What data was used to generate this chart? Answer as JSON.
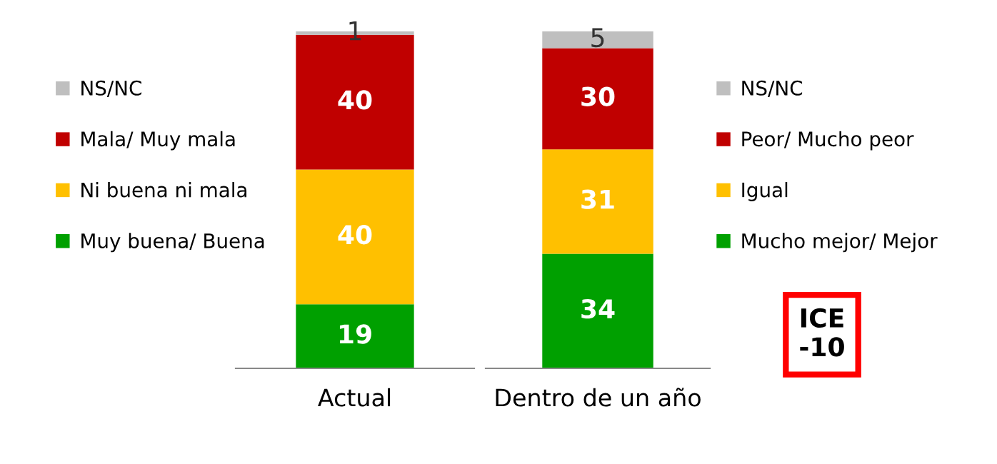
{
  "chart_data": [
    {
      "type": "bar",
      "stacked": true,
      "categories": [
        "Actual"
      ],
      "data_labels": true,
      "legend": "left",
      "series": [
        {
          "name": "Muy buena/ Buena",
          "color": "#00a000",
          "values": [
            19
          ]
        },
        {
          "name": "Ni buena ni mala",
          "color": "#ffc000",
          "values": [
            40
          ]
        },
        {
          "name": "Mala/ Muy mala",
          "color": "#c00000",
          "values": [
            40
          ]
        },
        {
          "name": "NS/NC",
          "color": "#bfbfbf",
          "values": [
            1
          ]
        }
      ]
    },
    {
      "type": "bar",
      "stacked": true,
      "categories": [
        "Dentro de un año"
      ],
      "data_labels": true,
      "legend": "right",
      "annotations": [
        "ICE\n-10"
      ],
      "series": [
        {
          "name": "Mucho mejor/ Mejor",
          "color": "#00a000",
          "values": [
            34
          ]
        },
        {
          "name": "Igual",
          "color": "#ffc000",
          "values": [
            31
          ]
        },
        {
          "name": "Peor/ Mucho peor",
          "color": "#c00000",
          "values": [
            30
          ]
        },
        {
          "name": "NS/NC",
          "color": "#bfbfbf",
          "values": [
            5
          ]
        }
      ]
    }
  ]
}
